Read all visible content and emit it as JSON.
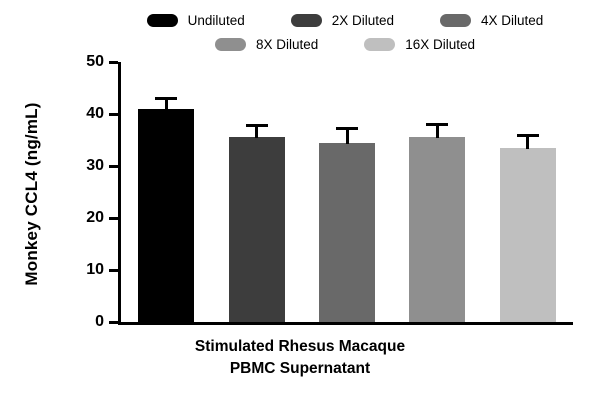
{
  "figure": {
    "background": "#ffffff",
    "axis_color": "#000000"
  },
  "chart_data": {
    "type": "bar",
    "title": "",
    "categories": [
      "Undiluted",
      "2X Diluted",
      "4X Diluted",
      "8X Diluted",
      "16X Diluted"
    ],
    "values": [
      41.0,
      35.5,
      34.5,
      35.5,
      33.5
    ],
    "errors_upper": [
      2.3,
      2.5,
      3.0,
      2.8,
      2.7
    ],
    "bar_colors": [
      "#000000",
      "#3d3d3d",
      "#696969",
      "#8f8f8f",
      "#bfbfbf"
    ],
    "xlabel_line1": "Stimulated Rhesus Macaque",
    "xlabel_line2": "PBMC Supernatant",
    "ylabel": "Monkey CCL4 (ng/mL)",
    "ylim": [
      0,
      50
    ],
    "yticks": [
      0,
      10,
      20,
      30,
      40,
      50
    ],
    "grid": false,
    "legend_position": "top",
    "legend_row_break": 3
  }
}
